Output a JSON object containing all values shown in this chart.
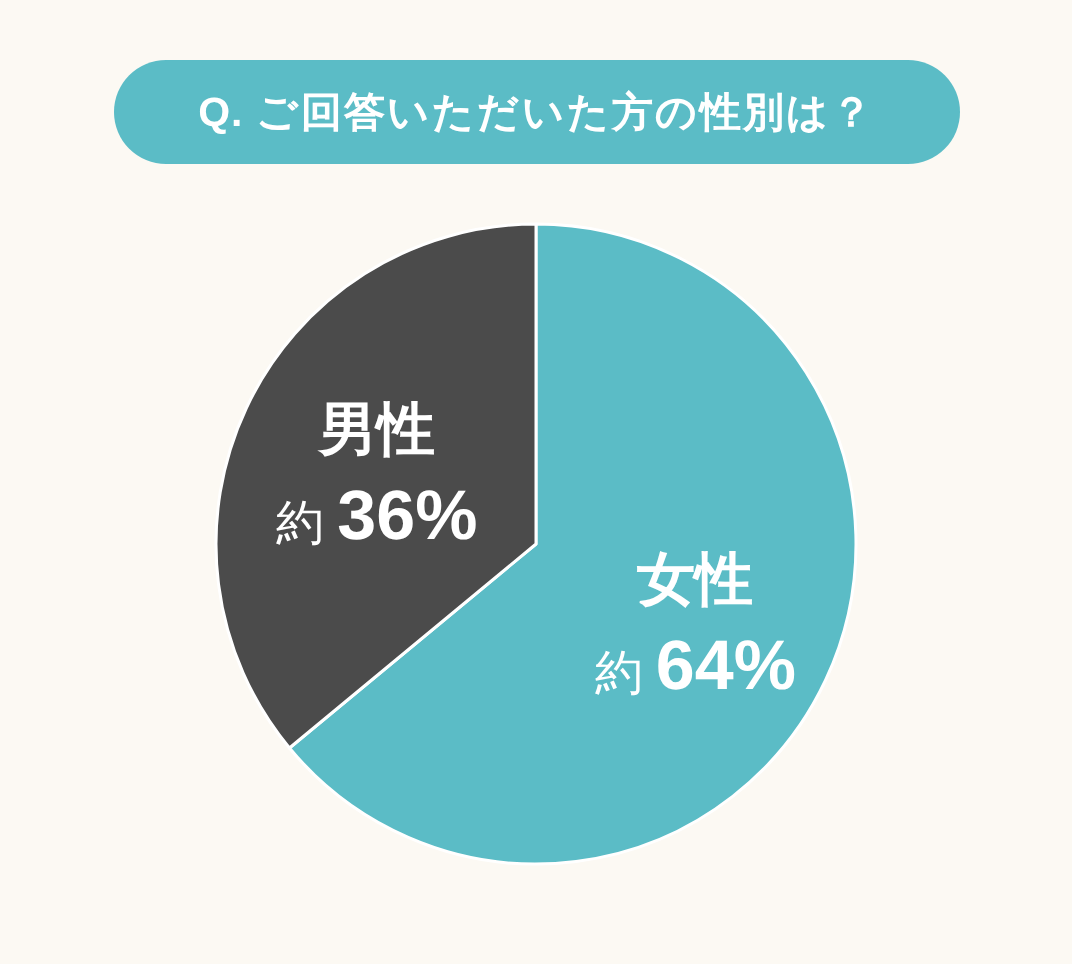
{
  "chart_data": {
    "type": "pie",
    "title": "Q. ご回答いただいた方の性別は？",
    "categories": [
      "女性",
      "男性"
    ],
    "values": [
      64,
      36
    ],
    "value_labels": [
      "約 **64%**",
      "約 **36%**"
    ],
    "colors": [
      "#5bbcc6",
      "#4b4b4b"
    ]
  }
}
